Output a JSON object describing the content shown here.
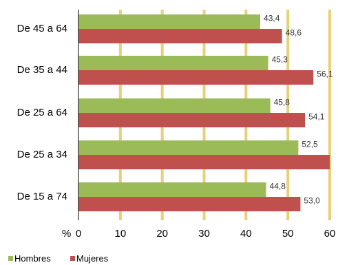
{
  "chart_data": {
    "type": "bar",
    "orientation": "horizontal",
    "categories": [
      "De 45 a 64",
      "De 35 a 44",
      "De 25 a 64",
      "De 25 a 34",
      "De 15 a 74"
    ],
    "series": [
      {
        "name": "Hombres",
        "color": "#9BBB59",
        "values": [
          43.4,
          45.3,
          45.8,
          52.5,
          44.8
        ],
        "labels": [
          "43,4",
          "45,3",
          "45,8",
          "52,5",
          "44,8"
        ]
      },
      {
        "name": "Mujeres",
        "color": "#C0504D",
        "values": [
          48.6,
          56.1,
          54.1,
          60.0,
          53.0
        ],
        "labels": [
          "48,6",
          "56,1",
          "54,1",
          "",
          "53,0"
        ]
      }
    ],
    "xlabel": "%",
    "xlim": [
      0,
      60
    ],
    "xticks": [
      "0",
      "10",
      "20",
      "30",
      "40",
      "50",
      "60"
    ],
    "grid": "vertical",
    "grid_color": "#E8CF7A",
    "legend": "bottom-left"
  }
}
